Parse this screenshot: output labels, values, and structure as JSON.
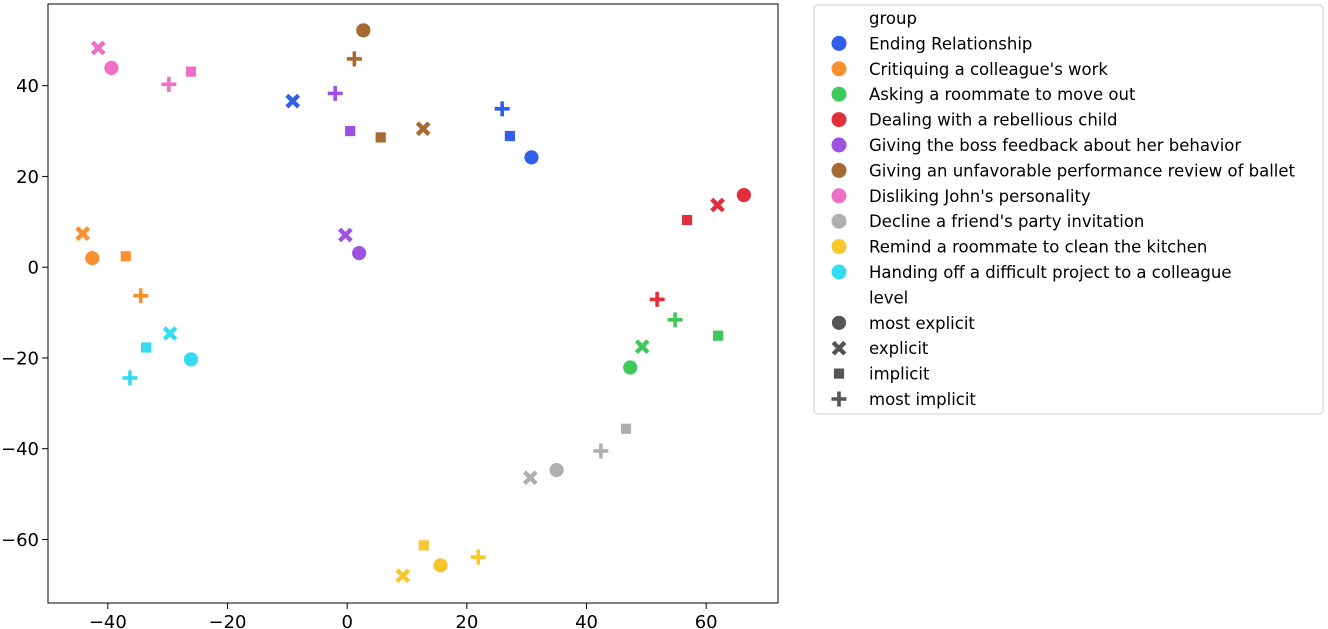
{
  "chart_data": {
    "type": "scatter",
    "title": "",
    "xlabel": "",
    "ylabel": "",
    "xlim": [
      -50,
      72
    ],
    "ylim": [
      -74,
      58
    ],
    "xticks": [
      -40,
      -20,
      0,
      20,
      40,
      60
    ],
    "yticks": [
      -60,
      -40,
      -20,
      0,
      20,
      40
    ],
    "xtick_labels": [
      "−40",
      "−20",
      "0",
      "20",
      "40",
      "60"
    ],
    "ytick_labels": [
      "−60",
      "−40",
      "−20",
      "0",
      "20",
      "40"
    ],
    "grid": false,
    "legend_position": "outside-right",
    "legend_group_title": "group",
    "legend_level_title": "level",
    "groups": [
      {
        "name": "Ending Relationship",
        "color": "#2f5fec"
      },
      {
        "name": "Critiquing a colleague's work",
        "color": "#f98f2f"
      },
      {
        "name": "Asking a roommate to move out",
        "color": "#3ec95a"
      },
      {
        "name": "Dealing with a rebellious child",
        "color": "#e22f3b"
      },
      {
        "name": "Giving the boss feedback about her behavior",
        "color": "#9d52e0"
      },
      {
        "name": "Giving an unfavorable performance review of ballet",
        "color": "#a86a33"
      },
      {
        "name": "Disliking John's personality",
        "color": "#ee6fc6"
      },
      {
        "name": "Decline a friend's party invitation",
        "color": "#afafaf"
      },
      {
        "name": "Remind a roommate to clean the kitchen",
        "color": "#f8c72c"
      },
      {
        "name": "Handing off a difficult project to a colleague",
        "color": "#33dcf0"
      }
    ],
    "levels": [
      {
        "name": "most explicit",
        "marker": "circle"
      },
      {
        "name": "explicit",
        "marker": "x"
      },
      {
        "name": "implicit",
        "marker": "square"
      },
      {
        "name": "most implicit",
        "marker": "plus"
      }
    ],
    "marker_legend_color": "#555555",
    "points": [
      {
        "group": 0,
        "level": 0,
        "x": 30.8,
        "y": 24.2
      },
      {
        "group": 0,
        "level": 1,
        "x": -9.1,
        "y": 36.6
      },
      {
        "group": 0,
        "level": 2,
        "x": 27.2,
        "y": 28.9
      },
      {
        "group": 0,
        "level": 3,
        "x": 25.9,
        "y": 34.9
      },
      {
        "group": 1,
        "level": 0,
        "x": -42.6,
        "y": 2.0
      },
      {
        "group": 1,
        "level": 1,
        "x": -44.2,
        "y": 7.4
      },
      {
        "group": 1,
        "level": 2,
        "x": -37.0,
        "y": 2.4
      },
      {
        "group": 1,
        "level": 3,
        "x": -34.5,
        "y": -6.3
      },
      {
        "group": 2,
        "level": 0,
        "x": 47.3,
        "y": -22.1
      },
      {
        "group": 2,
        "level": 1,
        "x": 49.3,
        "y": -17.5
      },
      {
        "group": 2,
        "level": 2,
        "x": 62.0,
        "y": -15.1
      },
      {
        "group": 2,
        "level": 3,
        "x": 54.8,
        "y": -11.6
      },
      {
        "group": 3,
        "level": 0,
        "x": 66.3,
        "y": 15.9
      },
      {
        "group": 3,
        "level": 1,
        "x": 61.9,
        "y": 13.7
      },
      {
        "group": 3,
        "level": 2,
        "x": 56.8,
        "y": 10.4
      },
      {
        "group": 3,
        "level": 3,
        "x": 51.8,
        "y": -7.1
      },
      {
        "group": 4,
        "level": 0,
        "x": 2.0,
        "y": 3.1
      },
      {
        "group": 4,
        "level": 1,
        "x": -0.3,
        "y": 7.1
      },
      {
        "group": 4,
        "level": 2,
        "x": 0.5,
        "y": 30.0
      },
      {
        "group": 4,
        "level": 3,
        "x": -2.0,
        "y": 38.3
      },
      {
        "group": 5,
        "level": 0,
        "x": 2.7,
        "y": 52.2
      },
      {
        "group": 5,
        "level": 1,
        "x": 12.7,
        "y": 30.5
      },
      {
        "group": 5,
        "level": 2,
        "x": 5.6,
        "y": 28.6
      },
      {
        "group": 5,
        "level": 3,
        "x": 1.2,
        "y": 45.9
      },
      {
        "group": 6,
        "level": 0,
        "x": -39.4,
        "y": 43.9
      },
      {
        "group": 6,
        "level": 1,
        "x": -41.6,
        "y": 48.3
      },
      {
        "group": 6,
        "level": 2,
        "x": -26.1,
        "y": 43.1
      },
      {
        "group": 6,
        "level": 3,
        "x": -29.8,
        "y": 40.3
      },
      {
        "group": 7,
        "level": 0,
        "x": 35.0,
        "y": -44.7
      },
      {
        "group": 7,
        "level": 1,
        "x": 30.6,
        "y": -46.4
      },
      {
        "group": 7,
        "level": 2,
        "x": 46.6,
        "y": -35.6
      },
      {
        "group": 7,
        "level": 3,
        "x": 42.4,
        "y": -40.5
      },
      {
        "group": 8,
        "level": 0,
        "x": 15.6,
        "y": -65.7
      },
      {
        "group": 8,
        "level": 1,
        "x": 9.3,
        "y": -68.0
      },
      {
        "group": 8,
        "level": 2,
        "x": 12.8,
        "y": -61.3
      },
      {
        "group": 8,
        "level": 3,
        "x": 21.9,
        "y": -63.9
      },
      {
        "group": 9,
        "level": 0,
        "x": -26.1,
        "y": -20.3
      },
      {
        "group": 9,
        "level": 1,
        "x": -29.6,
        "y": -14.6
      },
      {
        "group": 9,
        "level": 2,
        "x": -33.6,
        "y": -17.7
      },
      {
        "group": 9,
        "level": 3,
        "x": -36.3,
        "y": -24.4
      }
    ]
  }
}
